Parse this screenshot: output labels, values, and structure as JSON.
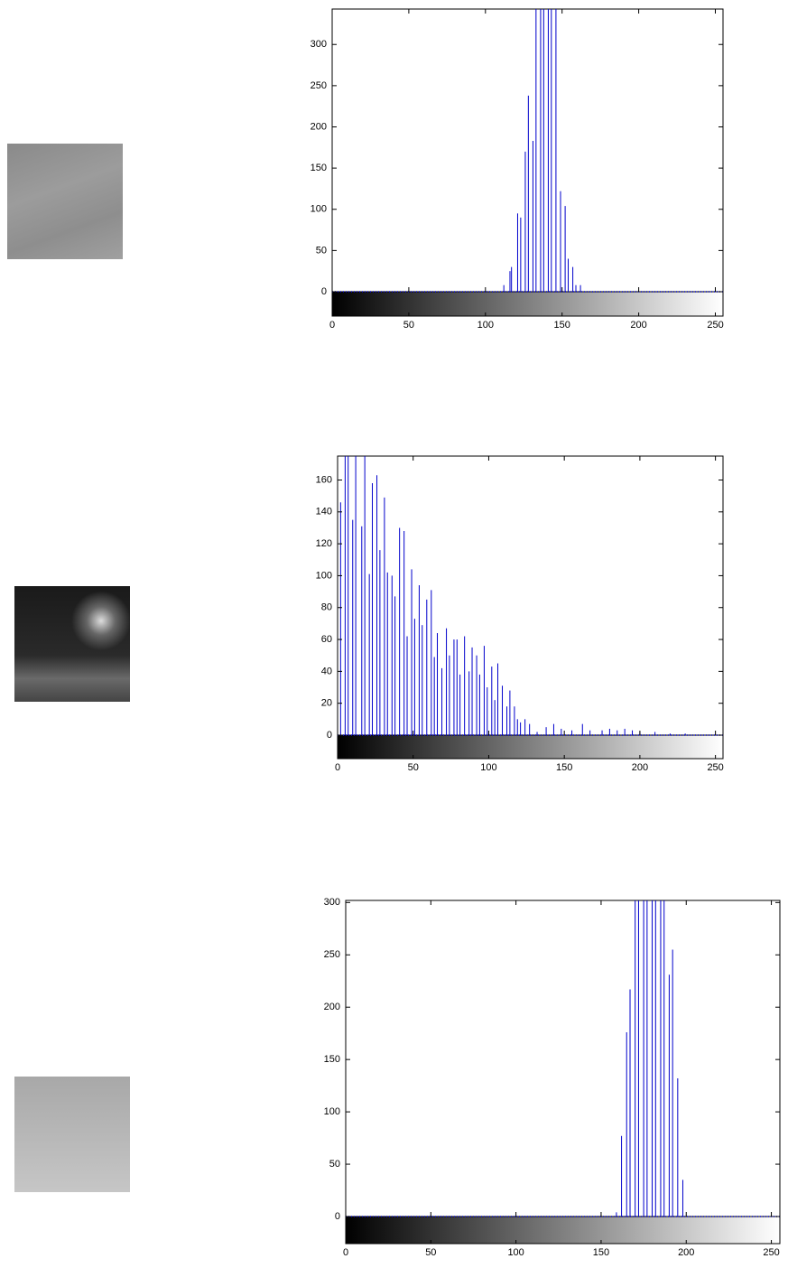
{
  "chart_data": [
    {
      "type": "stem",
      "color": "#0000cc",
      "x": [
        112,
        116,
        117,
        121,
        123,
        126,
        128,
        131,
        133,
        136,
        138,
        141,
        143,
        146,
        149,
        152,
        154,
        157,
        159,
        162
      ],
      "values": [
        8,
        25,
        30,
        95,
        90,
        170,
        238,
        183,
        343,
        343,
        343,
        343,
        343,
        343,
        122,
        104,
        40,
        30,
        8,
        8
      ],
      "xlim": [
        0,
        255
      ],
      "ylim": [
        0,
        343
      ],
      "xticks": [
        0,
        50,
        100,
        150,
        200,
        250
      ],
      "yticks": [
        0,
        50,
        100,
        150,
        200,
        250,
        300
      ]
    },
    {
      "type": "stem",
      "color": "#0000cc",
      "x": [
        2,
        5,
        7,
        10,
        12,
        16,
        18,
        21,
        23,
        26,
        28,
        31,
        33,
        36,
        38,
        41,
        44,
        46,
        49,
        51,
        54,
        56,
        59,
        62,
        64,
        66,
        69,
        72,
        74,
        77,
        79,
        81,
        84,
        87,
        89,
        92,
        94,
        97,
        99,
        102,
        104,
        106,
        109,
        112,
        114,
        117,
        119,
        121,
        124,
        127,
        132,
        138,
        143,
        148,
        155,
        162,
        167,
        175,
        180,
        185,
        190,
        195,
        200,
        210,
        220,
        230
      ],
      "values": [
        146,
        175,
        175,
        135,
        175,
        131,
        175,
        101,
        158,
        163,
        116,
        149,
        102,
        100,
        87,
        130,
        128,
        62,
        104,
        73,
        94,
        69,
        85,
        91,
        49,
        64,
        42,
        67,
        50,
        60,
        60,
        38,
        62,
        40,
        55,
        50,
        38,
        56,
        30,
        43,
        22,
        45,
        31,
        18,
        28,
        18,
        10,
        8,
        10,
        7,
        2,
        5,
        7,
        4,
        3,
        7,
        3,
        3,
        4,
        3,
        4,
        3,
        2,
        2,
        1,
        1
      ],
      "xlim": [
        0,
        255
      ],
      "ylim": [
        0,
        175
      ],
      "xticks": [
        0,
        50,
        100,
        150,
        200,
        250
      ],
      "yticks": [
        0,
        20,
        40,
        60,
        80,
        100,
        120,
        140,
        160
      ]
    },
    {
      "type": "stem",
      "color": "#0000cc",
      "x": [
        159,
        162,
        165,
        167,
        170,
        172,
        175,
        177,
        180,
        182,
        185,
        187,
        190,
        192,
        195,
        198
      ],
      "values": [
        4,
        77,
        176,
        217,
        302,
        302,
        302,
        302,
        302,
        302,
        302,
        302,
        231,
        255,
        132,
        35
      ],
      "xlim": [
        0,
        255
      ],
      "ylim": [
        0,
        302
      ],
      "xticks": [
        0,
        50,
        100,
        150,
        200,
        250
      ],
      "yticks": [
        0,
        50,
        100,
        150,
        200,
        250,
        300
      ]
    }
  ]
}
